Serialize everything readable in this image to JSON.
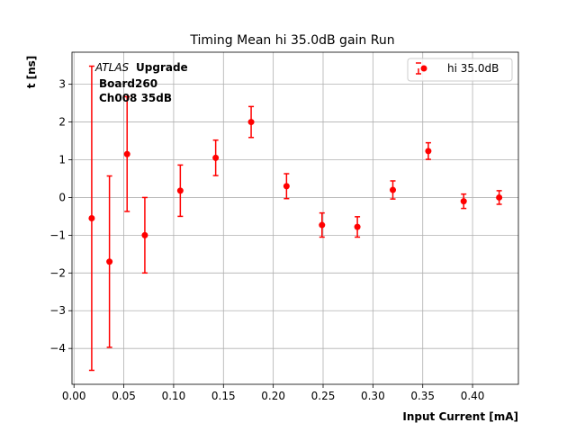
{
  "chart_data": {
    "type": "scatter",
    "title": "Timing Mean hi 35.0dB gain Run",
    "xlabel": "Input Current [mA]",
    "ylabel": "t [ns]",
    "xlim": [
      -0.002,
      0.446
    ],
    "ylim": [
      -4.95,
      3.85
    ],
    "xticks": [
      0.0,
      0.05,
      0.1,
      0.15,
      0.2,
      0.25,
      0.3,
      0.35,
      0.4
    ],
    "xtick_labels": [
      "0.00",
      "0.05",
      "0.10",
      "0.15",
      "0.20",
      "0.25",
      "0.30",
      "0.35",
      "0.40"
    ],
    "yticks": [
      -4,
      -3,
      -2,
      -1,
      0,
      1,
      2,
      3
    ],
    "ytick_labels": [
      "−4",
      "−3",
      "−2",
      "−1",
      "0",
      "1",
      "2",
      "3"
    ],
    "grid": true,
    "legend_position": "top-right",
    "annotation": {
      "atlas": "ATLAS",
      "upgrade": "Upgrade",
      "board": "Board260",
      "channel": "Ch008 35dB"
    },
    "series": [
      {
        "name": "hi 35.0dB",
        "color": "#ff0000",
        "x": [
          0.0178,
          0.0356,
          0.0533,
          0.0711,
          0.1067,
          0.1422,
          0.1778,
          0.2133,
          0.2489,
          0.2844,
          0.32,
          0.3556,
          0.3911,
          0.4267
        ],
        "y": [
          -0.55,
          -1.7,
          1.15,
          -1.0,
          0.18,
          1.05,
          2.0,
          0.3,
          -0.73,
          -0.78,
          0.2,
          1.23,
          -0.1,
          0.0
        ],
        "yerr": [
          4.03,
          2.27,
          1.52,
          1.0,
          0.68,
          0.47,
          0.41,
          0.33,
          0.32,
          0.27,
          0.24,
          0.22,
          0.19,
          0.18
        ]
      }
    ]
  }
}
